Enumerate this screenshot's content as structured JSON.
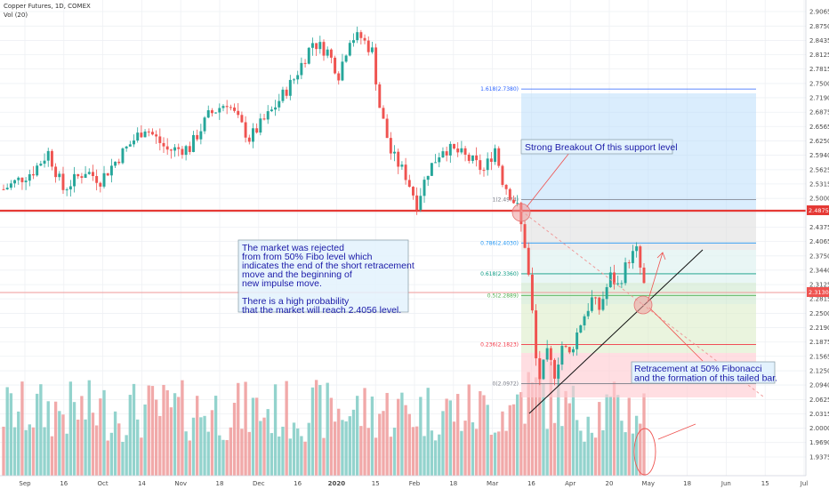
{
  "header": {
    "title": "Copper Futures, 1D, COMEX",
    "volume_label": "Vol (20)"
  },
  "chart_data": {
    "type": "candlestick",
    "y_axis_ticks": [
      "2.9065",
      "2.8750",
      "2.8435",
      "2.8125",
      "2.7815",
      "2.7500",
      "2.7190",
      "2.6875",
      "2.6565",
      "2.6250",
      "2.5940",
      "2.5625",
      "2.5315",
      "2.5000",
      "2.4690",
      "2.4375",
      "2.4065",
      "2.3750",
      "2.3440",
      "2.3125",
      "2.2815",
      "2.2500",
      "2.2190",
      "2.1875",
      "2.1565",
      "2.1250",
      "2.0940",
      "2.0625",
      "2.0315",
      "2.0000",
      "1.9690",
      "1.9375"
    ],
    "x_axis_ticks": [
      "Sep",
      "16",
      "Oct",
      "14",
      "Nov",
      "18",
      "Dec",
      "16",
      "2020",
      "15",
      "Feb",
      "18",
      "Mar",
      "16",
      "Apr",
      "20",
      "May",
      "18",
      "Jun",
      "15",
      "Jul"
    ],
    "ylim": [
      1.922,
      2.922
    ],
    "price_labels": {
      "support": "2.4875",
      "current": "2.3130"
    },
    "fibonacci": [
      {
        "label": "1.618(2.7380)",
        "value": 2.738,
        "color": "#2962ff"
      },
      {
        "label": "1(2.4974)",
        "value": 2.4974,
        "color": "#787b86"
      },
      {
        "label": "0.786(2.4030)",
        "value": 2.403,
        "color": "#2196f3"
      },
      {
        "label": "0.618(2.3360)",
        "value": 2.336,
        "color": "#089981"
      },
      {
        "label": "0.5(2.2889)",
        "value": 2.2889,
        "color": "#4caf50"
      },
      {
        "label": "0.236(2.1823)",
        "value": 2.1823,
        "color": "#f23645"
      },
      {
        "label": "0(2.0972)",
        "value": 2.0972,
        "color": "#787b86"
      }
    ],
    "annotations": {
      "breakout": "Strong Breakout Of this support level",
      "analysis": [
        "The market was rejected",
        "from from 50% Fibo level which",
        "indicates the end of the short retracement",
        "move and the beginning of",
        "new impulse move.",
        "",
        "There is a high probability",
        "that the market will reach 2.4056 level."
      ],
      "retracement": [
        "Retracement at 50% Fibonacci",
        "and the formation of this tailed bar."
      ]
    },
    "anchors": [
      {
        "i": 0,
        "v": 2.52
      },
      {
        "i": 8,
        "v": 2.56
      },
      {
        "i": 12,
        "v": 2.6
      },
      {
        "i": 16,
        "v": 2.52
      },
      {
        "i": 22,
        "v": 2.56
      },
      {
        "i": 26,
        "v": 2.54
      },
      {
        "i": 32,
        "v": 2.6
      },
      {
        "i": 38,
        "v": 2.655
      },
      {
        "i": 44,
        "v": 2.605
      },
      {
        "i": 50,
        "v": 2.61
      },
      {
        "i": 55,
        "v": 2.68
      },
      {
        "i": 60,
        "v": 2.71
      },
      {
        "i": 66,
        "v": 2.63
      },
      {
        "i": 72,
        "v": 2.69
      },
      {
        "i": 78,
        "v": 2.76
      },
      {
        "i": 83,
        "v": 2.84
      },
      {
        "i": 87,
        "v": 2.82
      },
      {
        "i": 90,
        "v": 2.77
      },
      {
        "i": 93,
        "v": 2.85
      },
      {
        "i": 96,
        "v": 2.85
      },
      {
        "i": 99,
        "v": 2.82
      },
      {
        "i": 101,
        "v": 2.7
      },
      {
        "i": 104,
        "v": 2.6
      },
      {
        "i": 108,
        "v": 2.55
      },
      {
        "i": 111,
        "v": 2.49
      },
      {
        "i": 114,
        "v": 2.56
      },
      {
        "i": 118,
        "v": 2.61
      },
      {
        "i": 122,
        "v": 2.6
      },
      {
        "i": 126,
        "v": 2.58
      },
      {
        "i": 129,
        "v": 2.56
      },
      {
        "i": 132,
        "v": 2.61
      },
      {
        "i": 134,
        "v": 2.54
      },
      {
        "i": 136,
        "v": 2.51
      },
      {
        "i": 138,
        "v": 2.48
      },
      {
        "i": 140,
        "v": 2.4
      },
      {
        "i": 141,
        "v": 2.33
      },
      {
        "i": 142,
        "v": 2.25
      },
      {
        "i": 143,
        "v": 2.15
      },
      {
        "i": 144,
        "v": 2.11
      },
      {
        "i": 146,
        "v": 2.16
      },
      {
        "i": 148,
        "v": 2.12
      },
      {
        "i": 150,
        "v": 2.18
      },
      {
        "i": 152,
        "v": 2.16
      },
      {
        "i": 155,
        "v": 2.23
      },
      {
        "i": 158,
        "v": 2.28
      },
      {
        "i": 160,
        "v": 2.26
      },
      {
        "i": 163,
        "v": 2.33
      },
      {
        "i": 165,
        "v": 2.31
      },
      {
        "i": 168,
        "v": 2.37
      },
      {
        "i": 170,
        "v": 2.385
      },
      {
        "i": 172,
        "v": 2.31
      }
    ]
  }
}
